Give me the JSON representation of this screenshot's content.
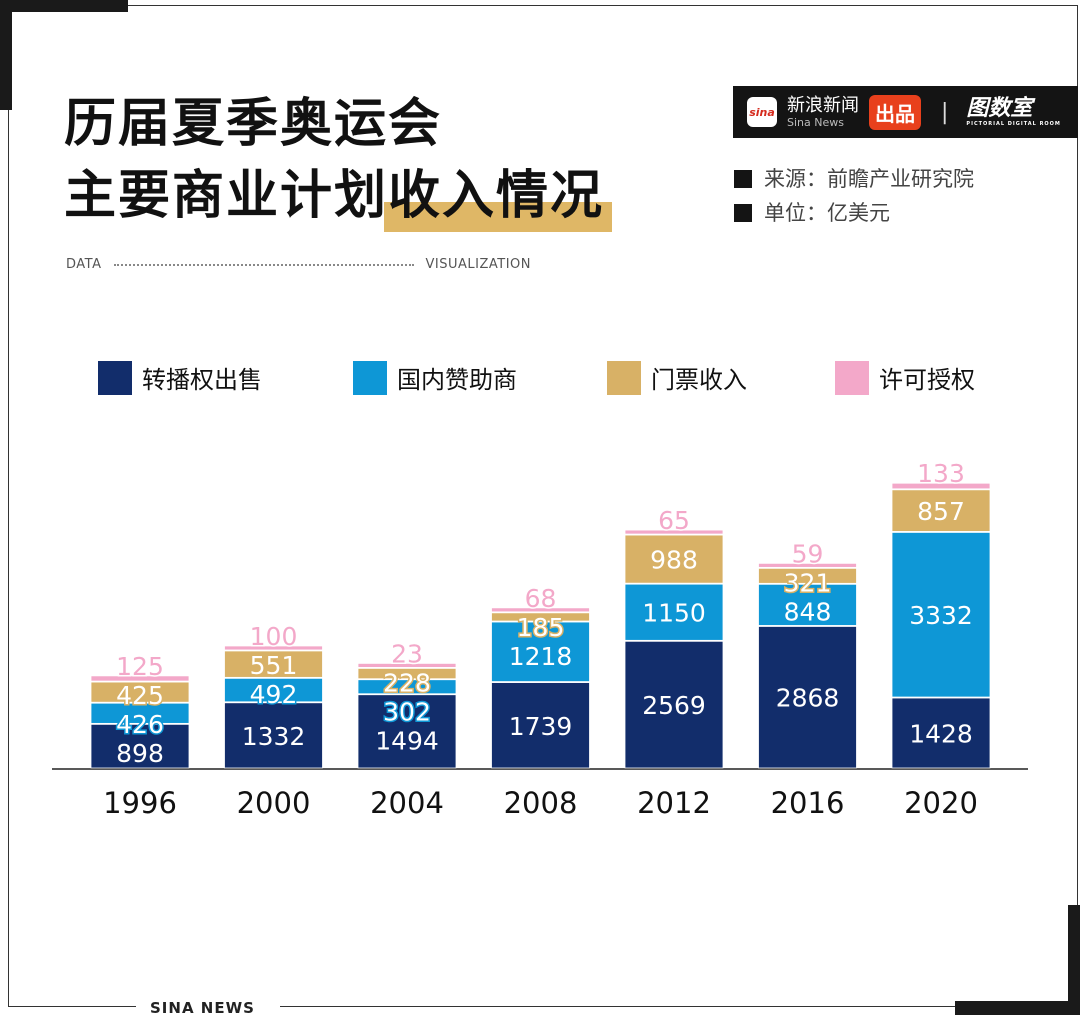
{
  "title": {
    "line1": "历届夏季奥运会",
    "line2_plain": "主要商业计划",
    "line2_highlight": "收入情况"
  },
  "tagline": {
    "left": "DATA",
    "right": "VISUALIZATION"
  },
  "brand": {
    "logo": "sina",
    "name_cn": "新浪新闻",
    "name_en": "Sina News",
    "badge": "出品",
    "separator": "|",
    "partner": "图数室",
    "partner_en": "PICTORIAL DIGITAL ROOM",
    "footer": "SINA NEWS"
  },
  "meta": {
    "source": "来源：前瞻产业研究院",
    "unit": "单位：亿美元"
  },
  "colors": {
    "broadcast": "#122d6b",
    "domestic": "#0e97d6",
    "ticket": "#d8b166",
    "licensing": "#f3a8c9",
    "highlight": "#dfb766",
    "badge": "#e8401c"
  },
  "chart_data": {
    "type": "bar",
    "stacked": true,
    "categories": [
      "1996",
      "2000",
      "2004",
      "2008",
      "2012",
      "2016",
      "2020"
    ],
    "series": [
      {
        "name": "转播权出售",
        "values": [
          898,
          1332,
          1494,
          1739,
          2569,
          2868,
          1428
        ]
      },
      {
        "name": "国内赞助商",
        "values": [
          426,
          492,
          302,
          1218,
          1150,
          848,
          3332
        ]
      },
      {
        "name": "门票收入",
        "values": [
          425,
          551,
          228,
          185,
          988,
          321,
          857
        ]
      },
      {
        "name": "许可授权",
        "values": [
          125,
          100,
          23,
          68,
          65,
          59,
          133
        ]
      }
    ],
    "legend": "top",
    "grid": false,
    "xlabel": "",
    "ylabel": "",
    "ylim": [
      0,
      6000
    ]
  }
}
